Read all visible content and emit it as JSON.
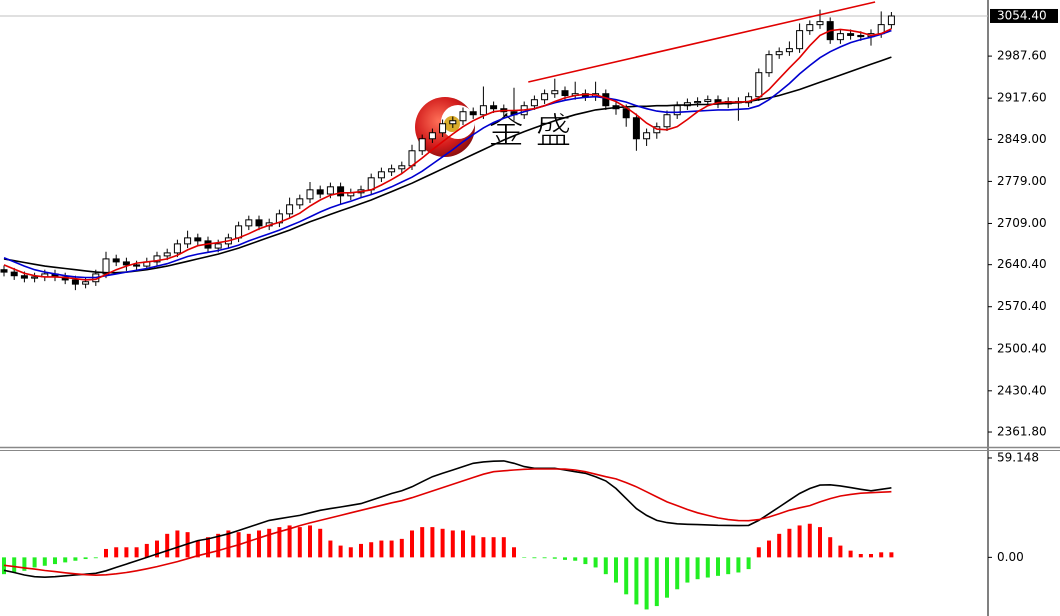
{
  "chart_data": [
    {
      "type": "candlestick",
      "open": [
        2632,
        2628,
        2622,
        2618,
        2620,
        2625,
        2620,
        2615,
        2608,
        2612,
        2625,
        2650,
        2645,
        2640,
        2638,
        2645,
        2655,
        2660,
        2675,
        2685,
        2680,
        2668,
        2675,
        2685,
        2705,
        2715,
        2705,
        2710,
        2725,
        2740,
        2750,
        2765,
        2758,
        2770,
        2755,
        2760,
        2765,
        2785,
        2795,
        2800,
        2805,
        2830,
        2850,
        2860,
        2875,
        2880,
        2895,
        2890,
        2905,
        2900,
        2895,
        2890,
        2905,
        2915,
        2925,
        2930,
        2922,
        2925,
        2920,
        2925,
        2905,
        2900,
        2885,
        2850,
        2860,
        2870,
        2890,
        2905,
        2910,
        2912,
        2915,
        2908,
        2912,
        2910,
        2920,
        2960,
        2990,
        2995,
        3000,
        3030,
        3040,
        3045,
        3015,
        3025,
        3022,
        3020,
        3025,
        3040
      ],
      "high": [
        2639,
        2635,
        2629,
        2627,
        2632,
        2632,
        2627,
        2622,
        2619,
        2632,
        2662,
        2657,
        2652,
        2647,
        2652,
        2662,
        2667,
        2682,
        2697,
        2692,
        2687,
        2682,
        2692,
        2712,
        2722,
        2722,
        2717,
        2732,
        2752,
        2757,
        2778,
        2772,
        2777,
        2777,
        2767,
        2772,
        2792,
        2802,
        2807,
        2812,
        2840,
        2857,
        2867,
        2882,
        2887,
        2902,
        2902,
        2937,
        2912,
        2907,
        2935,
        2912,
        2922,
        2932,
        2950,
        2937,
        2945,
        2932,
        2945,
        2932,
        2912,
        2907,
        2892,
        2867,
        2877,
        2897,
        2912,
        2917,
        2919,
        2922,
        2922,
        2919,
        2919,
        2927,
        2967,
        2997,
        3002,
        3012,
        3042,
        3047,
        3065,
        3052,
        3032,
        3032,
        3029,
        3032,
        3062,
        3061
      ],
      "low": [
        2621,
        2615,
        2611,
        2611,
        2613,
        2613,
        2608,
        2598,
        2601,
        2605,
        2618,
        2638,
        2630,
        2631,
        2631,
        2638,
        2648,
        2653,
        2668,
        2673,
        2661,
        2661,
        2668,
        2678,
        2698,
        2698,
        2698,
        2703,
        2718,
        2733,
        2743,
        2751,
        2751,
        2741,
        2748,
        2753,
        2758,
        2778,
        2788,
        2793,
        2798,
        2823,
        2843,
        2853,
        2868,
        2873,
        2883,
        2883,
        2893,
        2888,
        2880,
        2883,
        2898,
        2908,
        2918,
        2915,
        2915,
        2913,
        2913,
        2898,
        2890,
        2870,
        2830,
        2838,
        2850,
        2863,
        2883,
        2898,
        2903,
        2905,
        2901,
        2901,
        2880,
        2903,
        2913,
        2953,
        2983,
        2988,
        2993,
        3023,
        3033,
        3008,
        3008,
        3015,
        3013,
        3005,
        3018,
        3033
      ],
      "close": [
        2628,
        2622,
        2618,
        2620,
        2625,
        2620,
        2615,
        2608,
        2612,
        2625,
        2650,
        2645,
        2640,
        2638,
        2645,
        2655,
        2660,
        2675,
        2685,
        2680,
        2668,
        2675,
        2685,
        2705,
        2715,
        2705,
        2710,
        2725,
        2740,
        2750,
        2765,
        2758,
        2770,
        2755,
        2760,
        2765,
        2785,
        2795,
        2800,
        2805,
        2830,
        2850,
        2860,
        2875,
        2880,
        2895,
        2890,
        2905,
        2900,
        2895,
        2890,
        2905,
        2915,
        2925,
        2930,
        2922,
        2925,
        2920,
        2925,
        2905,
        2900,
        2885,
        2850,
        2860,
        2870,
        2890,
        2905,
        2910,
        2912,
        2915,
        2908,
        2912,
        2910,
        2920,
        2960,
        2990,
        2995,
        3000,
        3030,
        3040,
        3045,
        3015,
        3025,
        3022,
        3020,
        3025,
        3040,
        3054.4
      ],
      "up_color": "#ffffff",
      "down_color": "#000000",
      "outline_color": "#000000",
      "series": [
        {
          "color": "#000000",
          "values": [
            2650,
            2647,
            2644,
            2641,
            2638,
            2636,
            2634,
            2632,
            2630,
            2628,
            2627,
            2627,
            2628,
            2630,
            2632,
            2635,
            2638,
            2642,
            2646,
            2650,
            2654,
            2658,
            2663,
            2668,
            2674,
            2680,
            2686,
            2692,
            2698,
            2705,
            2712,
            2718,
            2724,
            2730,
            2736,
            2742,
            2748,
            2755,
            2762,
            2769,
            2776,
            2784,
            2792,
            2800,
            2808,
            2816,
            2824,
            2832,
            2840,
            2848,
            2855,
            2862,
            2868,
            2874,
            2880,
            2885,
            2890,
            2894,
            2898,
            2900,
            2902,
            2903,
            2904,
            2904,
            2905,
            2905,
            2906,
            2906,
            2907,
            2907,
            2908,
            2909,
            2910,
            2912,
            2915,
            2918,
            2922,
            2927,
            2932,
            2938,
            2944,
            2950,
            2956,
            2962,
            2968,
            2974,
            2980,
            2986
          ]
        },
        {
          "color": "#0000d0",
          "values": [
            2652,
            2645,
            2638,
            2632,
            2628,
            2625,
            2622,
            2620,
            2619,
            2619,
            2622,
            2625,
            2628,
            2631,
            2634,
            2638,
            2642,
            2648,
            2654,
            2658,
            2661,
            2664,
            2668,
            2673,
            2680,
            2686,
            2692,
            2698,
            2705,
            2712,
            2720,
            2728,
            2735,
            2741,
            2746,
            2752,
            2757,
            2763,
            2770,
            2778,
            2786,
            2796,
            2808,
            2820,
            2832,
            2845,
            2857,
            2868,
            2877,
            2884,
            2890,
            2895,
            2900,
            2905,
            2910,
            2914,
            2917,
            2919,
            2920,
            2918,
            2915,
            2911,
            2905,
            2900,
            2896,
            2894,
            2894,
            2895,
            2896,
            2897,
            2898,
            2898,
            2899,
            2900,
            2905,
            2915,
            2928,
            2942,
            2958,
            2972,
            2985,
            2995,
            3003,
            3010,
            3015,
            3019,
            3024,
            3030
          ]
        },
        {
          "color": "#e00000",
          "values": [
            2640,
            2633,
            2626,
            2622,
            2620,
            2620,
            2619,
            2617,
            2615,
            2616,
            2624,
            2632,
            2638,
            2643,
            2645,
            2647,
            2650,
            2656,
            2665,
            2672,
            2675,
            2677,
            2680,
            2685,
            2692,
            2700,
            2706,
            2711,
            2718,
            2726,
            2738,
            2748,
            2756,
            2760,
            2760,
            2762,
            2765,
            2773,
            2782,
            2792,
            2805,
            2818,
            2832,
            2845,
            2858,
            2870,
            2880,
            2888,
            2895,
            2897,
            2897,
            2898,
            2900,
            2905,
            2912,
            2918,
            2922,
            2924,
            2923,
            2918,
            2912,
            2902,
            2890,
            2876,
            2866,
            2865,
            2870,
            2882,
            2895,
            2905,
            2910,
            2911,
            2911,
            2912,
            2918,
            2932,
            2950,
            2968,
            2985,
            3005,
            3022,
            3030,
            3032,
            3030,
            3027,
            3022,
            3025,
            3033
          ]
        }
      ],
      "trendline": {
        "color": "#e00000",
        "x": [
          51.4,
          85.4
        ],
        "values": [
          2944.5,
          3077.7
        ]
      },
      "current_price": {
        "value": 3054.4,
        "label": "3054.40"
      },
      "watermark": "金 盛",
      "ylim": [
        2335.2,
        3081.0
      ],
      "yticks": [
        {
          "value": 2987.6,
          "label": "2987.60"
        },
        {
          "value": 2917.6,
          "label": "2917.60"
        },
        {
          "value": 2849,
          "label": "2849.00"
        },
        {
          "value": 2779,
          "label": "2779.00"
        },
        {
          "value": 2709,
          "label": "2709.00"
        },
        {
          "value": 2640.4,
          "label": "2640.40"
        },
        {
          "value": 2570.4,
          "label": "2570.40"
        },
        {
          "value": 2500.4,
          "label": "2500.40"
        },
        {
          "value": 2430.4,
          "label": "2430.40"
        },
        {
          "value": 2361.8,
          "label": "2361.80"
        }
      ]
    },
    {
      "type": "macd",
      "series": [
        {
          "color": "#000000",
          "values": [
            -7.7,
            -9,
            -10.5,
            -11.5,
            -11.8,
            -11.5,
            -11,
            -10.5,
            -10,
            -9.5,
            -8,
            -6,
            -4,
            -2,
            0,
            2,
            4,
            6,
            8,
            10,
            11,
            12.5,
            14,
            16,
            18,
            20,
            22,
            23,
            24,
            25,
            26.5,
            28,
            29,
            30,
            31,
            32,
            34,
            36,
            38,
            39.6,
            42,
            45,
            48,
            50,
            52,
            54,
            56,
            56.8,
            57.2,
            57.4,
            56,
            54,
            53,
            53,
            53,
            52,
            51,
            50,
            48,
            45.5,
            41,
            35,
            29,
            25,
            22,
            20.7,
            20,
            19.7,
            19.5,
            19.3,
            19.1,
            19,
            18.9,
            19,
            22,
            26,
            30,
            34,
            38,
            41,
            43,
            43.2,
            42.5,
            41.5,
            40.5,
            39.6,
            40.5,
            41.4
          ]
        },
        {
          "color": "#e00000",
          "values": [
            -4.7,
            -5.5,
            -6.3,
            -7,
            -7.8,
            -8.5,
            -9.2,
            -9.8,
            -10.3,
            -10.6,
            -10.4,
            -9.8,
            -9,
            -8,
            -6.8,
            -5.5,
            -4,
            -2.5,
            -0.8,
            1,
            2.5,
            4,
            5.8,
            7.5,
            9.5,
            11.5,
            13.5,
            15.3,
            17,
            18.9,
            20.5,
            22,
            23.5,
            25,
            26.5,
            28,
            29.5,
            31,
            32.5,
            33.7,
            35.5,
            37.5,
            39.5,
            41.5,
            43.5,
            45.5,
            47.5,
            49.5,
            51,
            51.5,
            52,
            52.4,
            52.6,
            52.6,
            52.6,
            52.5,
            52,
            51,
            49.5,
            48,
            46.7,
            44.5,
            42,
            39,
            36,
            33,
            30.8,
            28.5,
            26.5,
            25,
            23.5,
            22.5,
            21.9,
            21.8,
            22.5,
            24,
            26,
            28,
            29.5,
            30.8,
            33,
            35,
            36.5,
            37.5,
            38.2,
            38.5,
            38.8,
            39.1
          ]
        }
      ],
      "histogram": {
        "up_color": "#ff0000",
        "down_color": "#22ee22",
        "values": [
          -10,
          -9,
          -8,
          -6,
          -5,
          -4,
          -3,
          -2,
          -1,
          -0.5,
          5,
          6,
          6,
          6,
          8,
          10,
          14,
          16,
          15,
          10,
          12,
          14,
          16,
          15,
          14,
          16,
          17,
          18,
          19,
          18,
          19,
          17,
          10,
          7,
          6,
          8,
          9,
          10,
          10,
          11,
          16,
          18,
          18,
          17,
          16,
          16,
          13,
          12,
          12,
          12,
          6,
          -0.3,
          -0.5,
          -0.5,
          -0.8,
          -1.5,
          -2,
          -4,
          -6,
          -10,
          -15,
          -22,
          -28,
          -31,
          -29,
          -24,
          -19,
          -15,
          -13,
          -12,
          -11,
          -10,
          -9,
          -7,
          6,
          10,
          14,
          17,
          19,
          20,
          18,
          12,
          7,
          4,
          2,
          2,
          3,
          3
        ]
      },
      "ylim": [
        -34.9,
        63.3
      ],
      "yticks": [
        {
          "value": 59.148,
          "label": "59.148"
        },
        {
          "value": 0,
          "label": "0.00"
        }
      ]
    }
  ]
}
